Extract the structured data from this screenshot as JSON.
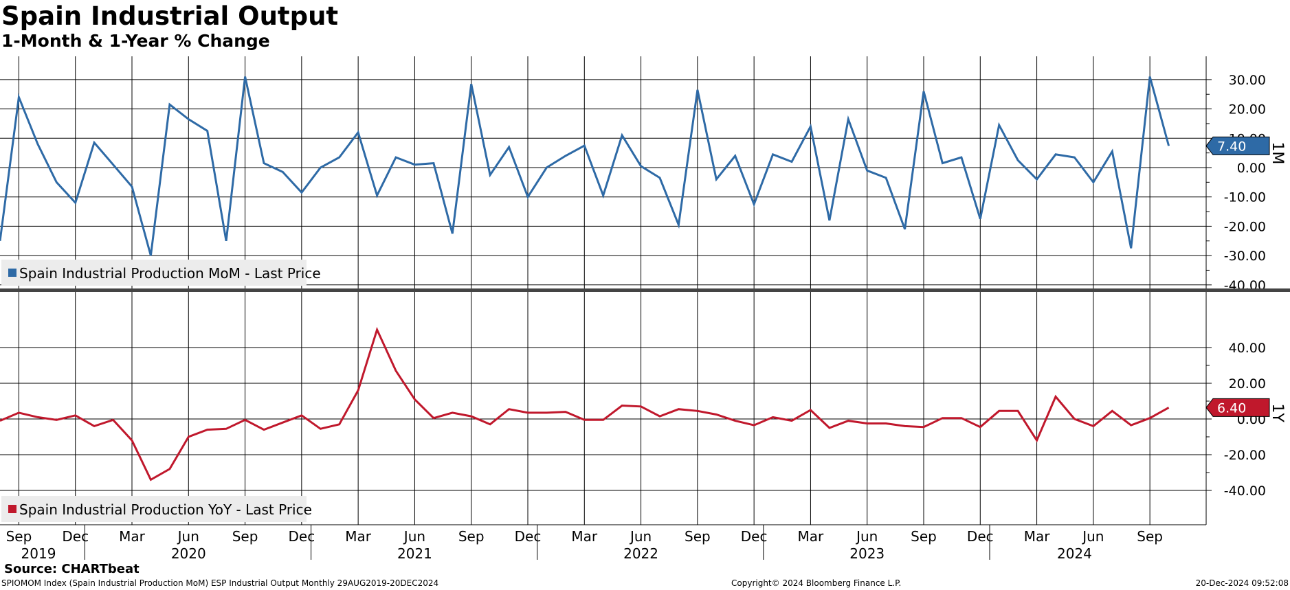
{
  "title": "Spain Industrial Output",
  "subtitle": "1-Month & 1-Year % Change",
  "source": "Source: CHARTbeat",
  "footer": {
    "left": "SPIOMOM Index (Spain Industrial Production MoM) ESP Industrial Output  Monthly 29AUG2019-20DEC2024",
    "center": "Copyright© 2024 Bloomberg Finance L.P.",
    "right": "20-Dec-2024 09:52:08"
  },
  "x_axis": {
    "month_ticks": [
      "Sep",
      "Dec",
      "Mar",
      "Jun",
      "Sep",
      "Dec",
      "Mar",
      "Jun",
      "Sep",
      "Dec",
      "Mar",
      "Jun",
      "Sep",
      "Dec",
      "Mar",
      "Jun",
      "Sep",
      "Dec",
      "Mar",
      "Jun",
      "Sep"
    ],
    "month_tick_dates": [
      "2019-09",
      "2019-12",
      "2020-03",
      "2020-06",
      "2020-09",
      "2020-12",
      "2021-03",
      "2021-06",
      "2021-09",
      "2021-12",
      "2022-03",
      "2022-06",
      "2022-09",
      "2022-12",
      "2023-03",
      "2023-06",
      "2023-09",
      "2023-12",
      "2024-03",
      "2024-06",
      "2024-09"
    ],
    "years": [
      "2019",
      "2020",
      "2021",
      "2022",
      "2023",
      "2024"
    ],
    "range": [
      "2019-08",
      "2024-11"
    ]
  },
  "colors": {
    "mom": "#2e6aa6",
    "yoy": "#c0182c",
    "grid": "#000000",
    "divider": "#444444",
    "legend_bg": "#ececec"
  },
  "chart_data": [
    {
      "type": "line",
      "panel_label": "1M",
      "legend": "Spain Industrial Production MoM - Last Price",
      "last_value_label": "7.40",
      "ylim": [
        -40,
        40
      ],
      "y_ticks": [
        30,
        20,
        10,
        0,
        -10,
        -20,
        -30,
        -40
      ],
      "y_tick_labels": [
        "30.00",
        "20.00",
        "10.00",
        "0.00",
        "-10.00",
        "-20.00",
        "-30.00",
        "-40.00"
      ],
      "grid": true,
      "legend_position": "bottom-left",
      "series": [
        {
          "name": "Spain Industrial Production MoM - Last Price",
          "x": [
            "2019-08",
            "2019-09",
            "2019-10",
            "2019-11",
            "2019-12",
            "2020-01",
            "2020-02",
            "2020-03",
            "2020-04",
            "2020-05",
            "2020-06",
            "2020-07",
            "2020-08",
            "2020-09",
            "2020-10",
            "2020-11",
            "2020-12",
            "2021-01",
            "2021-02",
            "2021-03",
            "2021-04",
            "2021-05",
            "2021-06",
            "2021-07",
            "2021-08",
            "2021-09",
            "2021-10",
            "2021-11",
            "2021-12",
            "2022-01",
            "2022-02",
            "2022-03",
            "2022-04",
            "2022-05",
            "2022-06",
            "2022-07",
            "2022-08",
            "2022-09",
            "2022-10",
            "2022-11",
            "2022-12",
            "2023-01",
            "2023-02",
            "2023-03",
            "2023-04",
            "2023-05",
            "2023-06",
            "2023-07",
            "2023-08",
            "2023-09",
            "2023-10",
            "2023-11",
            "2023-12",
            "2024-01",
            "2024-02",
            "2024-03",
            "2024-04",
            "2024-05",
            "2024-06",
            "2024-07",
            "2024-08",
            "2024-09",
            "2024-10"
          ],
          "values": [
            -25,
            24,
            8,
            -5,
            -12,
            8.5,
            1,
            -6.5,
            -30,
            21.5,
            16.5,
            12.5,
            -25,
            31,
            1.5,
            -1.5,
            -8.5,
            0,
            3.5,
            12,
            -9.5,
            3.5,
            1,
            1.5,
            -22.5,
            28.5,
            -2.5,
            7,
            -10,
            0,
            4,
            7.5,
            -9.5,
            11,
            0.5,
            -3.5,
            -19.5,
            26.5,
            -4,
            4,
            -12.5,
            4.5,
            2,
            14,
            -18,
            16.5,
            -1,
            -3.5,
            -21,
            26,
            1.5,
            3.5,
            -17.5,
            14.5,
            2.5,
            -4,
            4.5,
            3.5,
            -5,
            5.5,
            -27.5,
            31,
            7.4
          ]
        }
      ]
    },
    {
      "type": "line",
      "panel_label": "1Y",
      "legend": "Spain Industrial Production YoY - Last Price",
      "last_value_label": "6.40",
      "ylim": [
        -50,
        52
      ],
      "y_ticks": [
        40,
        20,
        0,
        -20,
        -40
      ],
      "y_tick_labels": [
        "40.00",
        "20.00",
        "0.00",
        "-20.00",
        "-40.00"
      ],
      "grid": true,
      "legend_position": "bottom-left",
      "series": [
        {
          "name": "Spain Industrial Production YoY - Last Price",
          "x": [
            "2019-08",
            "2019-09",
            "2019-10",
            "2019-11",
            "2019-12",
            "2020-01",
            "2020-02",
            "2020-03",
            "2020-04",
            "2020-05",
            "2020-06",
            "2020-07",
            "2020-08",
            "2020-09",
            "2020-10",
            "2020-11",
            "2020-12",
            "2021-01",
            "2021-02",
            "2021-03",
            "2021-04",
            "2021-05",
            "2021-06",
            "2021-07",
            "2021-08",
            "2021-09",
            "2021-10",
            "2021-11",
            "2021-12",
            "2022-01",
            "2022-02",
            "2022-03",
            "2022-04",
            "2022-05",
            "2022-06",
            "2022-07",
            "2022-08",
            "2022-09",
            "2022-10",
            "2022-11",
            "2022-12",
            "2023-01",
            "2023-02",
            "2023-03",
            "2023-04",
            "2023-05",
            "2023-06",
            "2023-07",
            "2023-08",
            "2023-09",
            "2023-10",
            "2023-11",
            "2023-12",
            "2024-01",
            "2024-02",
            "2024-03",
            "2024-04",
            "2024-05",
            "2024-06",
            "2024-07",
            "2024-08",
            "2024-09",
            "2024-10"
          ],
          "values": [
            -1,
            3.5,
            1,
            -0.5,
            2,
            -4,
            -0.5,
            -12,
            -34,
            -28,
            -10,
            -6,
            -5.5,
            -0.5,
            -6,
            -2,
            2,
            -5.5,
            -3,
            16,
            50,
            27,
            11,
            0.5,
            3.5,
            1.5,
            -3,
            5.5,
            3.5,
            3.5,
            4,
            -0.5,
            -0.5,
            7.5,
            7,
            1.5,
            5.5,
            4.5,
            2.5,
            -1,
            -3.5,
            1,
            -1,
            5,
            -5,
            -1,
            -2.5,
            -2.5,
            -4,
            -4.5,
            0.5,
            0.5,
            -4.5,
            4.5,
            4.5,
            -12,
            12.5,
            0,
            -4,
            4.5,
            -3.5,
            0.5,
            6.4
          ]
        }
      ]
    }
  ]
}
